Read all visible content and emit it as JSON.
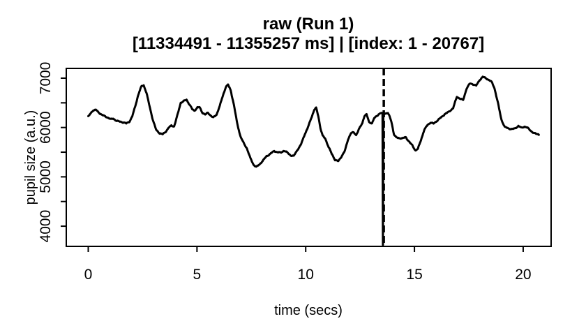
{
  "title": {
    "line1": "raw (Run 1)",
    "line2": "[11334491 - 11355257 ms] | [index: 1 - 20767]"
  },
  "chart_data": {
    "type": "line",
    "title": "raw (Run 1)",
    "subtitle": "[11334491 - 11355257 ms] | [index: 1 - 20767]",
    "xlabel": "time (secs)",
    "ylabel": "pupil size (a.u.)",
    "xlim": [
      -1.0103,
      21.285
    ],
    "ylim": [
      3591,
      7198
    ],
    "x_ticks": [
      0,
      5,
      10,
      15,
      20
    ],
    "y_ticks": [
      4000,
      4500,
      5000,
      5500,
      6000,
      6500,
      7000
    ],
    "y_labeled_ticks": [
      4000,
      5000,
      6000,
      7000
    ],
    "grid": false,
    "legend": "none",
    "background": "#ffffff",
    "vline": {
      "x": 13.59,
      "style": "dashed",
      "color": "#000000"
    },
    "series": [
      {
        "name": "pupil_size_raw",
        "color": "#000000",
        "points": [
          [
            0.0,
            6215
          ],
          [
            0.1,
            6270
          ],
          [
            0.22,
            6345
          ],
          [
            0.35,
            6365
          ],
          [
            0.48,
            6310
          ],
          [
            0.62,
            6265
          ],
          [
            0.78,
            6215
          ],
          [
            0.92,
            6190
          ],
          [
            1.05,
            6165
          ],
          [
            1.15,
            6185
          ],
          [
            1.3,
            6145
          ],
          [
            1.45,
            6120
          ],
          [
            1.62,
            6095
          ],
          [
            1.75,
            6075
          ],
          [
            1.9,
            6125
          ],
          [
            2.02,
            6230
          ],
          [
            2.15,
            6420
          ],
          [
            2.3,
            6660
          ],
          [
            2.45,
            6830
          ],
          [
            2.55,
            6850
          ],
          [
            2.68,
            6700
          ],
          [
            2.82,
            6440
          ],
          [
            2.97,
            6160
          ],
          [
            3.12,
            5950
          ],
          [
            3.28,
            5875
          ],
          [
            3.42,
            5860
          ],
          [
            3.55,
            5915
          ],
          [
            3.7,
            6005
          ],
          [
            3.82,
            6040
          ],
          [
            3.95,
            6015
          ],
          [
            4.1,
            6240
          ],
          [
            4.25,
            6500
          ],
          [
            4.4,
            6545
          ],
          [
            4.52,
            6570
          ],
          [
            4.65,
            6470
          ],
          [
            4.78,
            6365
          ],
          [
            4.88,
            6330
          ],
          [
            5.02,
            6405
          ],
          [
            5.12,
            6415
          ],
          [
            5.25,
            6310
          ],
          [
            5.38,
            6265
          ],
          [
            5.5,
            6295
          ],
          [
            5.63,
            6235
          ],
          [
            5.75,
            6195
          ],
          [
            5.9,
            6265
          ],
          [
            6.05,
            6450
          ],
          [
            6.2,
            6660
          ],
          [
            6.33,
            6820
          ],
          [
            6.43,
            6858
          ],
          [
            6.55,
            6750
          ],
          [
            6.7,
            6460
          ],
          [
            6.85,
            6090
          ],
          [
            7.0,
            5820
          ],
          [
            7.15,
            5675
          ],
          [
            7.3,
            5565
          ],
          [
            7.45,
            5385
          ],
          [
            7.6,
            5255
          ],
          [
            7.73,
            5208
          ],
          [
            7.87,
            5245
          ],
          [
            8.02,
            5315
          ],
          [
            8.2,
            5415
          ],
          [
            8.4,
            5485
          ],
          [
            8.55,
            5528
          ],
          [
            8.7,
            5495
          ],
          [
            8.85,
            5482
          ],
          [
            9.0,
            5528
          ],
          [
            9.15,
            5502
          ],
          [
            9.32,
            5438
          ],
          [
            9.45,
            5420
          ],
          [
            9.6,
            5525
          ],
          [
            9.77,
            5640
          ],
          [
            9.95,
            5865
          ],
          [
            10.1,
            6005
          ],
          [
            10.25,
            6185
          ],
          [
            10.4,
            6355
          ],
          [
            10.48,
            6390
          ],
          [
            10.58,
            6230
          ],
          [
            10.68,
            5985
          ],
          [
            10.78,
            5840
          ],
          [
            10.9,
            5780
          ],
          [
            11.05,
            5605
          ],
          [
            11.2,
            5455
          ],
          [
            11.35,
            5340
          ],
          [
            11.5,
            5322
          ],
          [
            11.65,
            5425
          ],
          [
            11.8,
            5525
          ],
          [
            11.95,
            5755
          ],
          [
            12.08,
            5878
          ],
          [
            12.2,
            5902
          ],
          [
            12.32,
            5856
          ],
          [
            12.45,
            5975
          ],
          [
            12.6,
            6085
          ],
          [
            12.7,
            6230
          ],
          [
            12.8,
            6255
          ],
          [
            12.92,
            6100
          ],
          [
            13.05,
            6090
          ],
          [
            13.15,
            6195
          ],
          [
            13.25,
            6235
          ],
          [
            13.35,
            6270
          ],
          [
            13.45,
            6290
          ],
          [
            13.51,
            6280
          ],
          [
            13.53,
            6265
          ],
          [
            13.55,
            3620
          ],
          [
            13.57,
            6245
          ],
          [
            13.62,
            6270
          ],
          [
            13.7,
            6285
          ],
          [
            13.78,
            6290
          ],
          [
            13.86,
            6225
          ],
          [
            13.94,
            6130
          ],
          [
            14.0,
            6000
          ],
          [
            14.06,
            5865
          ],
          [
            14.16,
            5800
          ],
          [
            14.3,
            5778
          ],
          [
            14.45,
            5772
          ],
          [
            14.6,
            5806
          ],
          [
            14.75,
            5722
          ],
          [
            14.9,
            5645
          ],
          [
            15.05,
            5528
          ],
          [
            15.16,
            5560
          ],
          [
            15.3,
            5742
          ],
          [
            15.45,
            5952
          ],
          [
            15.6,
            6062
          ],
          [
            15.74,
            6102
          ],
          [
            15.88,
            6072
          ],
          [
            16.05,
            6132
          ],
          [
            16.2,
            6196
          ],
          [
            16.4,
            6282
          ],
          [
            16.6,
            6322
          ],
          [
            16.78,
            6385
          ],
          [
            16.95,
            6620
          ],
          [
            17.1,
            6592
          ],
          [
            17.24,
            6562
          ],
          [
            17.4,
            6792
          ],
          [
            17.55,
            6882
          ],
          [
            17.7,
            6872
          ],
          [
            17.84,
            6852
          ],
          [
            18.0,
            6972
          ],
          [
            18.14,
            7030
          ],
          [
            18.28,
            6992
          ],
          [
            18.44,
            6952
          ],
          [
            18.55,
            6922
          ],
          [
            18.68,
            6805
          ],
          [
            18.84,
            6505
          ],
          [
            19.0,
            6155
          ],
          [
            19.15,
            6002
          ],
          [
            19.3,
            5982
          ],
          [
            19.46,
            5972
          ],
          [
            19.62,
            5988
          ],
          [
            19.78,
            6030
          ],
          [
            19.92,
            5985
          ],
          [
            20.08,
            6015
          ],
          [
            20.22,
            5992
          ],
          [
            20.36,
            5938
          ],
          [
            20.5,
            5888
          ],
          [
            20.64,
            5862
          ],
          [
            20.72,
            5852
          ]
        ]
      }
    ]
  }
}
